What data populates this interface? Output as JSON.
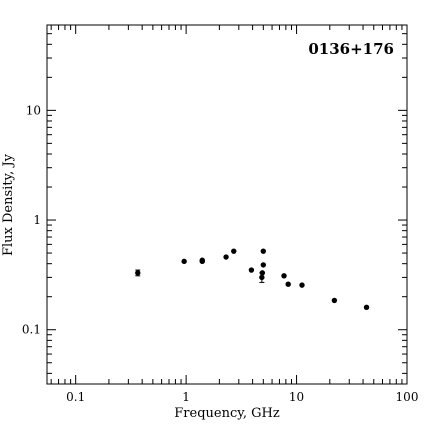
{
  "chart_data": {
    "type": "scatter",
    "title": "0136+176",
    "xlabel": "Frequency, GHz",
    "ylabel": "Flux Density, Jy",
    "xscale": "log",
    "yscale": "log",
    "xlim": [
      0.055,
      100
    ],
    "ylim": [
      0.032,
      60
    ],
    "x_tick_labels": [
      "0.1",
      "1",
      "10",
      "100"
    ],
    "y_tick_labels": [
      "0.1",
      "1",
      "10"
    ],
    "grid": false,
    "legend": "none",
    "title_position": "top-right",
    "marker": "filled-circle",
    "color": "#000000",
    "points": [
      {
        "x": 0.365,
        "y": 0.33,
        "yerr": 0.02
      },
      {
        "x": 0.96,
        "y": 0.42
      },
      {
        "x": 1.4,
        "y": 0.43
      },
      {
        "x": 1.4,
        "y": 0.42
      },
      {
        "x": 2.3,
        "y": 0.46
      },
      {
        "x": 2.7,
        "y": 0.52
      },
      {
        "x": 3.9,
        "y": 0.35
      },
      {
        "x": 4.85,
        "y": 0.3,
        "yerr": 0.03
      },
      {
        "x": 4.9,
        "y": 0.33
      },
      {
        "x": 5.0,
        "y": 0.52
      },
      {
        "x": 5.0,
        "y": 0.39
      },
      {
        "x": 7.7,
        "y": 0.31
      },
      {
        "x": 8.4,
        "y": 0.26
      },
      {
        "x": 11.2,
        "y": 0.255
      },
      {
        "x": 22,
        "y": 0.185
      },
      {
        "x": 43,
        "y": 0.16
      }
    ]
  }
}
